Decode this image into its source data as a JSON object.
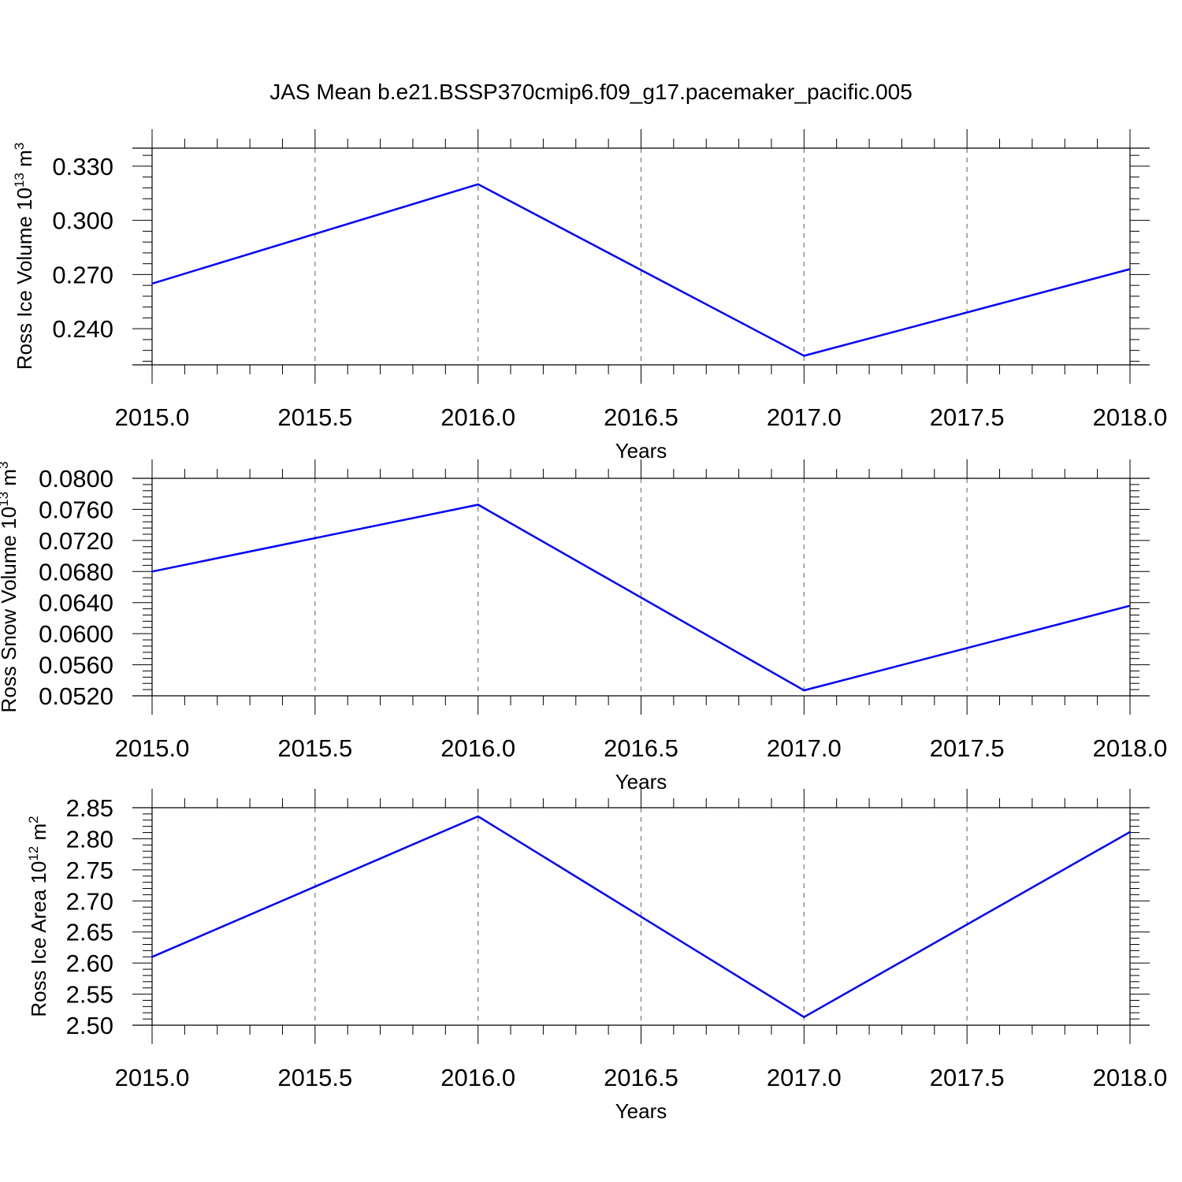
{
  "title": "JAS Mean b.e21.BSSP370cmip6.f09_g17.pacemaker_pacific.005",
  "line_color": "#0000ff",
  "chart_data": [
    {
      "type": "line",
      "ylabel": "Ross Ice Volume 10",
      "ylabel_exp": "13",
      "ylabel_unit": "m",
      "ylabel_unit_exp": "3",
      "xlabel": "Years",
      "x_ticks": [
        "2015.0",
        "2015.5",
        "2016.0",
        "2016.5",
        "2017.0",
        "2017.5",
        "2018.0"
      ],
      "y_ticks": [
        "0.240",
        "0.270",
        "0.300",
        "0.330"
      ],
      "xlim": [
        2015,
        2018
      ],
      "ylim": [
        0.22,
        0.34
      ],
      "grid": "vertical-dashed",
      "series": [
        {
          "x": [
            2015,
            2016,
            2017,
            2018
          ],
          "y": [
            0.265,
            0.32,
            0.225,
            0.273
          ]
        }
      ]
    },
    {
      "type": "line",
      "ylabel": "Ross Snow Volume 10",
      "ylabel_exp": "13",
      "ylabel_unit": "m",
      "ylabel_unit_exp": "3",
      "xlabel": "Years",
      "x_ticks": [
        "2015.0",
        "2015.5",
        "2016.0",
        "2016.5",
        "2017.0",
        "2017.5",
        "2018.0"
      ],
      "y_ticks": [
        "0.0520",
        "0.0560",
        "0.0600",
        "0.0640",
        "0.0680",
        "0.0720",
        "0.0760",
        "0.0800"
      ],
      "xlim": [
        2015,
        2018
      ],
      "ylim": [
        0.052,
        0.08
      ],
      "grid": "vertical-dashed",
      "series": [
        {
          "x": [
            2015,
            2016,
            2017,
            2018
          ],
          "y": [
            0.068,
            0.0766,
            0.0527,
            0.0636
          ]
        }
      ]
    },
    {
      "type": "line",
      "ylabel": "Ross Ice Area 10",
      "ylabel_exp": "12",
      "ylabel_unit": "m",
      "ylabel_unit_exp": "2",
      "xlabel": "Years",
      "x_ticks": [
        "2015.0",
        "2015.5",
        "2016.0",
        "2016.5",
        "2017.0",
        "2017.5",
        "2018.0"
      ],
      "y_ticks": [
        "2.50",
        "2.55",
        "2.60",
        "2.65",
        "2.70",
        "2.75",
        "2.80",
        "2.85"
      ],
      "xlim": [
        2015,
        2018
      ],
      "ylim": [
        2.5,
        2.85
      ],
      "grid": "vertical-dashed",
      "series": [
        {
          "x": [
            2015,
            2016,
            2017,
            2018
          ],
          "y": [
            2.61,
            2.836,
            2.513,
            2.811
          ]
        }
      ]
    }
  ]
}
